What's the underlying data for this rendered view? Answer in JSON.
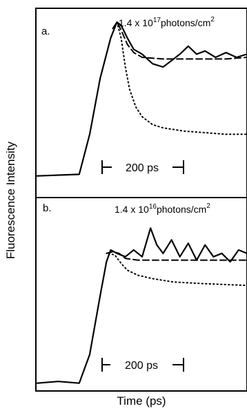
{
  "chart_data": {
    "type": "line",
    "ylabel": "Fluorescence Intensity",
    "xlabel": "Time (ps)",
    "panels": [
      {
        "label": "a.",
        "fluence_base": "1.4 x 10",
        "fluence_exp": "17",
        "fluence_unit": "photons/cm",
        "fluence_unit_exp": "2",
        "scale_bar": "200 ps",
        "series": [
          {
            "style": "solid",
            "points": [
              [
                0,
                0.04
              ],
              [
                20,
                0.05
              ],
              [
                25,
                0.3
              ],
              [
                30,
                0.65
              ],
              [
                35,
                0.9
              ],
              [
                38,
                1.0
              ],
              [
                40,
                0.98
              ],
              [
                43,
                0.9
              ],
              [
                46,
                0.83
              ],
              [
                50,
                0.8
              ],
              [
                55,
                0.74
              ],
              [
                60,
                0.72
              ],
              [
                64,
                0.76
              ],
              [
                68,
                0.8
              ],
              [
                72,
                0.85
              ],
              [
                76,
                0.8
              ],
              [
                80,
                0.82
              ],
              [
                85,
                0.78
              ],
              [
                90,
                0.81
              ],
              [
                95,
                0.78
              ],
              [
                100,
                0.8
              ]
            ]
          },
          {
            "style": "dashed",
            "points": [
              [
                36,
                0.96
              ],
              [
                38,
                1.0
              ],
              [
                40,
                0.95
              ],
              [
                43,
                0.86
              ],
              [
                46,
                0.81
              ],
              [
                50,
                0.78
              ],
              [
                60,
                0.77
              ],
              [
                70,
                0.77
              ],
              [
                80,
                0.77
              ],
              [
                90,
                0.77
              ],
              [
                100,
                0.78
              ]
            ]
          },
          {
            "style": "dotted",
            "points": [
              [
                38,
                1.0
              ],
              [
                40,
                0.9
              ],
              [
                42,
                0.72
              ],
              [
                44,
                0.58
              ],
              [
                47,
                0.47
              ],
              [
                50,
                0.41
              ],
              [
                55,
                0.36
              ],
              [
                60,
                0.34
              ],
              [
                70,
                0.32
              ],
              [
                80,
                0.31
              ],
              [
                90,
                0.3
              ],
              [
                100,
                0.3
              ]
            ]
          }
        ]
      },
      {
        "label": "b.",
        "fluence_base": "1.4 x 10",
        "fluence_exp": "16",
        "fluence_unit": "photons/cm",
        "fluence_unit_exp": "2",
        "scale_bar": "200 ps",
        "series": [
          {
            "style": "solid",
            "points": [
              [
                0,
                0.03
              ],
              [
                10,
                0.04
              ],
              [
                20,
                0.03
              ],
              [
                25,
                0.2
              ],
              [
                30,
                0.55
              ],
              [
                33,
                0.75
              ],
              [
                35,
                0.82
              ],
              [
                38,
                0.8
              ],
              [
                42,
                0.78
              ],
              [
                46,
                0.82
              ],
              [
                50,
                0.78
              ],
              [
                54,
                0.95
              ],
              [
                57,
                0.85
              ],
              [
                60,
                0.8
              ],
              [
                64,
                0.88
              ],
              [
                68,
                0.78
              ],
              [
                72,
                0.86
              ],
              [
                76,
                0.76
              ],
              [
                80,
                0.85
              ],
              [
                84,
                0.78
              ],
              [
                88,
                0.8
              ],
              [
                92,
                0.75
              ],
              [
                96,
                0.82
              ],
              [
                100,
                0.8
              ]
            ]
          },
          {
            "style": "dashed",
            "points": [
              [
                33,
                0.8
              ],
              [
                36,
                0.81
              ],
              [
                39,
                0.8
              ],
              [
                42,
                0.77
              ],
              [
                48,
                0.76
              ],
              [
                60,
                0.76
              ],
              [
                80,
                0.76
              ],
              [
                100,
                0.76
              ]
            ]
          },
          {
            "style": "dotted",
            "points": [
              [
                34,
                0.8
              ],
              [
                37,
                0.79
              ],
              [
                40,
                0.74
              ],
              [
                43,
                0.7
              ],
              [
                48,
                0.67
              ],
              [
                55,
                0.65
              ],
              [
                65,
                0.63
              ],
              [
                80,
                0.62
              ],
              [
                100,
                0.61
              ]
            ]
          }
        ]
      }
    ]
  }
}
